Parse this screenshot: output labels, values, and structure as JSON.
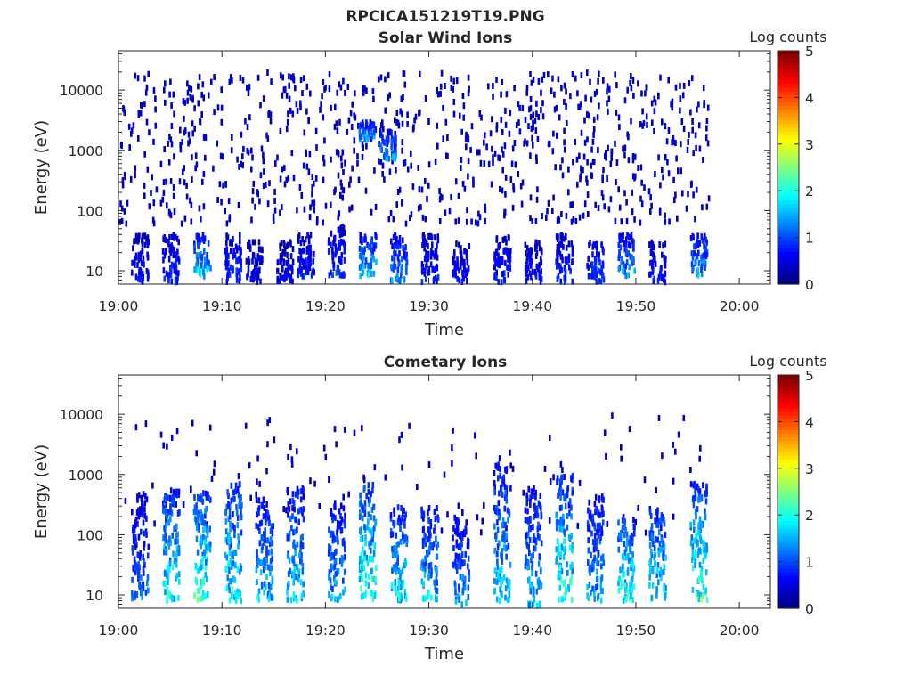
{
  "figure_title": "RPCICA151219T19.PNG",
  "chart_data": [
    {
      "type": "heatmap",
      "title": "Solar Wind Ions",
      "xlabel": "Time",
      "ylabel": "Energy (eV)",
      "x_axis": {
        "ticks": [
          "19:00",
          "19:10",
          "19:20",
          "19:30",
          "19:40",
          "19:50",
          "20:00"
        ],
        "range": [
          "19:00",
          "20:03"
        ]
      },
      "y_axis": {
        "scale": "log",
        "ticks": [
          10,
          100,
          1000,
          10000
        ],
        "range": [
          6,
          45000
        ]
      },
      "colorbar": {
        "label": "Log counts",
        "colormap": "jet",
        "ticks": [
          0,
          1,
          2,
          3,
          4,
          5
        ],
        "range": [
          0,
          5
        ]
      },
      "data_extent": {
        "time_start": "19:00",
        "time_end": "19:57"
      },
      "features": [
        {
          "time_center": "19:02",
          "energy_low": 6,
          "energy_high": 40,
          "log_counts": 0.8
        },
        {
          "time_center": "19:05",
          "energy_low": 6,
          "energy_high": 40,
          "log_counts": 1.0
        },
        {
          "time_center": "19:08",
          "energy_low": 8,
          "energy_high": 40,
          "log_counts": 1.8
        },
        {
          "time_center": "19:11",
          "energy_low": 6,
          "energy_high": 40,
          "log_counts": 1.0
        },
        {
          "time_center": "19:13",
          "energy_low": 6,
          "energy_high": 30,
          "log_counts": 0.7
        },
        {
          "time_center": "19:16",
          "energy_low": 6,
          "energy_high": 30,
          "log_counts": 0.6
        },
        {
          "time_center": "19:18",
          "energy_low": 8,
          "energy_high": 40,
          "log_counts": 0.9
        },
        {
          "time_center": "19:21",
          "energy_low": 8,
          "energy_high": 60,
          "log_counts": 1.0
        },
        {
          "time_center": "19:24",
          "energy_low": 8,
          "energy_high": 40,
          "log_counts": 1.8
        },
        {
          "time_center": "19:24",
          "energy_low": 1500,
          "energy_high": 3000,
          "log_counts": 1.7
        },
        {
          "time_center": "19:27",
          "energy_low": 6,
          "energy_high": 40,
          "log_counts": 1.5
        },
        {
          "time_center": "19:26",
          "energy_low": 700,
          "energy_high": 2200,
          "log_counts": 1.6
        },
        {
          "time_center": "19:30",
          "energy_low": 6,
          "energy_high": 40,
          "log_counts": 0.9
        },
        {
          "time_center": "19:33",
          "energy_low": 6,
          "energy_high": 30,
          "log_counts": 0.8
        },
        {
          "time_center": "19:37",
          "energy_low": 6,
          "energy_high": 40,
          "log_counts": 0.9
        },
        {
          "time_center": "19:40",
          "energy_low": 6,
          "energy_high": 30,
          "log_counts": 0.8
        },
        {
          "time_center": "19:43",
          "energy_low": 6,
          "energy_high": 40,
          "log_counts": 1.0
        },
        {
          "time_center": "19:46",
          "energy_low": 6,
          "energy_high": 30,
          "log_counts": 1.2
        },
        {
          "time_center": "19:49",
          "energy_low": 8,
          "energy_high": 40,
          "log_counts": 1.6
        },
        {
          "time_center": "19:52",
          "energy_low": 6,
          "energy_high": 30,
          "log_counts": 0.9
        },
        {
          "time_center": "19:56",
          "energy_low": 8,
          "energy_high": 40,
          "log_counts": 1.6
        }
      ],
      "background": {
        "energy_low": 60,
        "energy_high": 20000,
        "log_counts": 0.3,
        "density": "sparse"
      }
    },
    {
      "type": "heatmap",
      "title": "Cometary Ions",
      "xlabel": "Time",
      "ylabel": "Energy (eV)",
      "x_axis": {
        "ticks": [
          "19:00",
          "19:10",
          "19:20",
          "19:30",
          "19:40",
          "19:50",
          "20:00"
        ],
        "range": [
          "19:00",
          "20:03"
        ]
      },
      "y_axis": {
        "scale": "log",
        "ticks": [
          10,
          100,
          1000,
          10000
        ],
        "range": [
          6,
          45000
        ]
      },
      "colorbar": {
        "label": "Log counts",
        "colormap": "jet",
        "ticks": [
          0,
          1,
          2,
          3,
          4,
          5
        ],
        "range": [
          0,
          5
        ]
      },
      "data_extent": {
        "time_start": "19:00",
        "time_end": "19:57"
      },
      "features": [
        {
          "time_center": "19:02",
          "energy_low": 8,
          "energy_high": 500,
          "log_counts": 1.3
        },
        {
          "time_center": "19:05",
          "energy_low": 8,
          "energy_high": 600,
          "log_counts": 2.2
        },
        {
          "time_center": "19:08",
          "energy_low": 8,
          "energy_high": 500,
          "log_counts": 2.4
        },
        {
          "time_center": "19:11",
          "energy_low": 8,
          "energy_high": 700,
          "log_counts": 2.2
        },
        {
          "time_center": "19:14",
          "energy_low": 8,
          "energy_high": 400,
          "log_counts": 1.8
        },
        {
          "time_center": "19:17",
          "energy_low": 8,
          "energy_high": 600,
          "log_counts": 1.9
        },
        {
          "time_center": "19:21",
          "energy_low": 8,
          "energy_high": 300,
          "log_counts": 1.7
        },
        {
          "time_center": "19:24",
          "energy_low": 8,
          "energy_high": 700,
          "log_counts": 2.4
        },
        {
          "time_center": "19:27",
          "energy_low": 8,
          "energy_high": 300,
          "log_counts": 2.0
        },
        {
          "time_center": "19:30",
          "energy_low": 8,
          "energy_high": 300,
          "log_counts": 1.8
        },
        {
          "time_center": "19:33",
          "energy_low": 6,
          "energy_high": 200,
          "log_counts": 1.6
        },
        {
          "time_center": "19:37",
          "energy_low": 8,
          "energy_high": 1500,
          "log_counts": 1.9
        },
        {
          "time_center": "19:40",
          "energy_low": 6,
          "energy_high": 600,
          "log_counts": 1.7
        },
        {
          "time_center": "19:43",
          "energy_low": 8,
          "energy_high": 1000,
          "log_counts": 2.3
        },
        {
          "time_center": "19:46",
          "energy_low": 8,
          "energy_high": 500,
          "log_counts": 1.7
        },
        {
          "time_center": "19:49",
          "energy_low": 8,
          "energy_high": 200,
          "log_counts": 2.4
        },
        {
          "time_center": "19:52",
          "energy_low": 8,
          "energy_high": 300,
          "log_counts": 2.1
        },
        {
          "time_center": "19:56",
          "energy_low": 8,
          "energy_high": 700,
          "log_counts": 2.5
        }
      ],
      "background": {
        "energy_low": 100,
        "energy_high": 10000,
        "log_counts": 0.3,
        "density": "very sparse"
      }
    }
  ]
}
